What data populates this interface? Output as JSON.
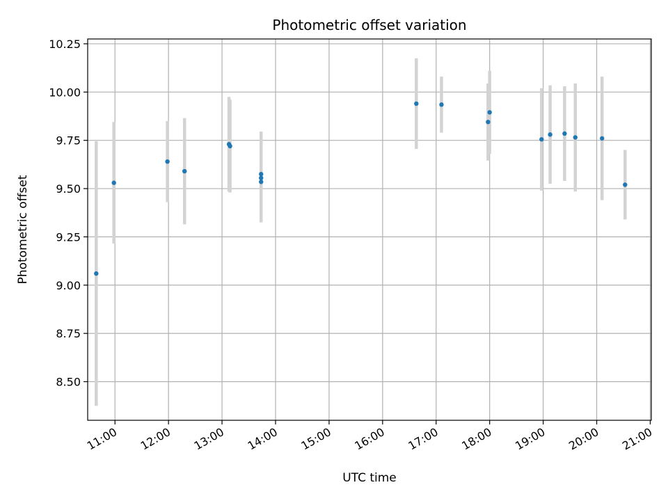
{
  "chart_data": {
    "type": "scatter",
    "title": "Photometric offset variation",
    "xlabel": "UTC time",
    "ylabel": "Photometric offset",
    "grid": true,
    "x_ticks": [
      "11:00",
      "12:00",
      "13:00",
      "14:00",
      "15:00",
      "16:00",
      "17:00",
      "18:00",
      "19:00",
      "20:00",
      "21:00"
    ],
    "y_ticks": [
      "8.50",
      "8.75",
      "9.00",
      "9.25",
      "9.50",
      "9.75",
      "10.00",
      "10.25"
    ],
    "x_unit": "hours (UTC)",
    "xlim": [
      10.49,
      21.02
    ],
    "ylim": [
      8.3,
      10.275
    ],
    "marker_color": "#1f77b4",
    "errorbar_color": "#d3d3d3",
    "points": [
      {
        "x": 10.65,
        "y": 9.06,
        "err": 0.685
      },
      {
        "x": 10.98,
        "y": 9.53,
        "err": 0.315
      },
      {
        "x": 11.98,
        "y": 9.64,
        "err": 0.21
      },
      {
        "x": 12.3,
        "y": 9.59,
        "err": 0.275
      },
      {
        "x": 13.13,
        "y": 9.73,
        "err": 0.245
      },
      {
        "x": 13.15,
        "y": 9.72,
        "err": 0.24
      },
      {
        "x": 13.73,
        "y": 9.575,
        "err": 0.22
      },
      {
        "x": 13.73,
        "y": 9.555,
        "err": 0.2
      },
      {
        "x": 13.73,
        "y": 9.535,
        "err": 0.21
      },
      {
        "x": 16.63,
        "y": 9.94,
        "err": 0.235
      },
      {
        "x": 17.1,
        "y": 9.935,
        "err": 0.145
      },
      {
        "x": 17.97,
        "y": 9.845,
        "err": 0.2
      },
      {
        "x": 18.0,
        "y": 9.895,
        "err": 0.215
      },
      {
        "x": 18.97,
        "y": 9.755,
        "err": 0.265
      },
      {
        "x": 19.13,
        "y": 9.78,
        "err": 0.255
      },
      {
        "x": 19.4,
        "y": 9.785,
        "err": 0.245
      },
      {
        "x": 19.6,
        "y": 9.765,
        "err": 0.28
      },
      {
        "x": 20.1,
        "y": 9.76,
        "err": 0.32
      },
      {
        "x": 20.53,
        "y": 9.52,
        "err": 0.18
      }
    ]
  }
}
